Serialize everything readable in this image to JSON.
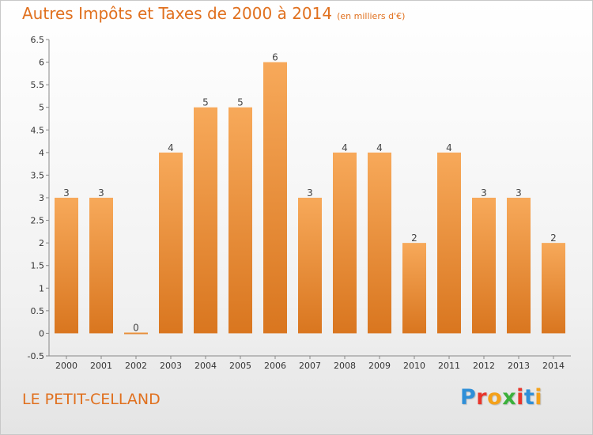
{
  "header": {
    "title": "Autres Impôts et Taxes de 2000 à 2014",
    "unit": "(en milliers d'€)"
  },
  "footer": {
    "commune": "LE PETIT-CELLAND",
    "logo_letters": [
      "P",
      "r",
      "o",
      "x",
      "i",
      "t",
      "i"
    ],
    "logo_colors": [
      "#2f8fd8",
      "#e8352b",
      "#f4a11a",
      "#3bb03b",
      "#e8352b",
      "#2f8fd8",
      "#f4a11a"
    ]
  },
  "chart_data": {
    "type": "bar",
    "title": "Autres Impôts et Taxes de 2000 à 2014",
    "subtitle": "(en milliers d'€)",
    "categories": [
      "2000",
      "2001",
      "2002",
      "2003",
      "2004",
      "2005",
      "2006",
      "2007",
      "2008",
      "2009",
      "2010",
      "2011",
      "2012",
      "2013",
      "2014"
    ],
    "values": [
      3,
      3,
      0,
      4,
      5,
      5,
      6,
      3,
      4,
      4,
      2,
      4,
      3,
      3,
      2
    ],
    "data_labels": [
      "3",
      "3",
      "0",
      "4",
      "5",
      "5",
      "6",
      "3",
      "4",
      "4",
      "2",
      "4",
      "3",
      "3",
      "2"
    ],
    "ylim": [
      -0.5,
      6.5
    ],
    "yticks": [
      -0.5,
      0,
      0.5,
      1,
      1.5,
      2,
      2.5,
      3,
      3.5,
      4,
      4.5,
      5,
      5.5,
      6,
      6.5
    ],
    "ytick_labels": [
      "-0.5",
      "0",
      "0.5",
      "1",
      "1.5",
      "2",
      "2.5",
      "3",
      "3.5",
      "4",
      "4.5",
      "5",
      "5.5",
      "6",
      "6.5"
    ],
    "grid": false,
    "bar_color_top": "#f7a95a",
    "bar_color_bottom": "#d9761f",
    "xlabel": "",
    "ylabel": ""
  }
}
